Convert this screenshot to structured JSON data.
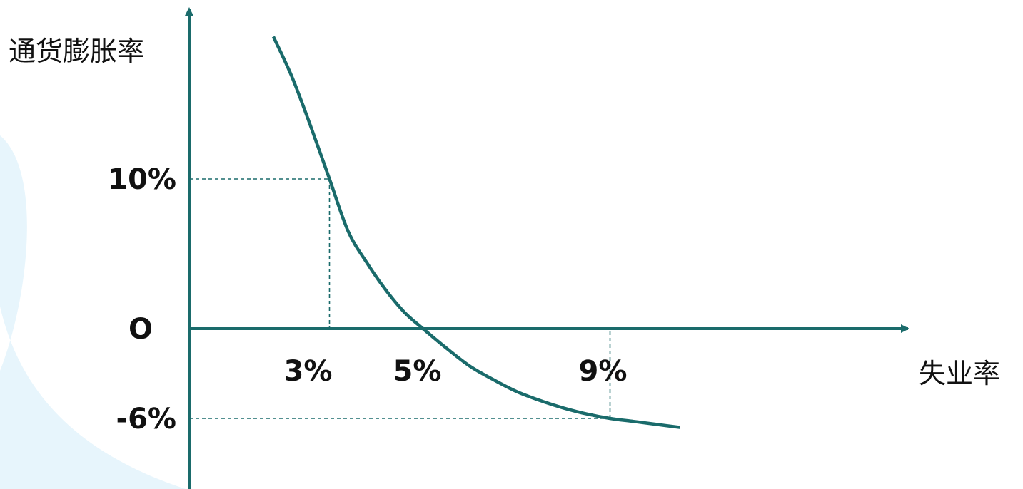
{
  "chart_data": {
    "type": "line",
    "ylabel": "通货膨胀率",
    "xlabel": "失业率",
    "origin_label": "O",
    "colors": {
      "axis": "#1a6b6b",
      "curve": "#1a6b6b",
      "guide": "#1a6b6b",
      "background_arc": "#e3f3fc"
    },
    "x_ticks": [
      {
        "value": 3,
        "label": "3%"
      },
      {
        "value": 5,
        "label": "5%"
      },
      {
        "value": 9,
        "label": "9%"
      }
    ],
    "y_ticks": [
      {
        "value": 10,
        "label": "10%"
      },
      {
        "value": -6,
        "label": "-6%"
      }
    ],
    "xlim": [
      0,
      12
    ],
    "ylim": [
      -10,
      20
    ],
    "series": [
      {
        "x": [
          1.8,
          2.2,
          2.6,
          3.0,
          3.4,
          3.8,
          4.2,
          4.6,
          5.0,
          5.5,
          6.0,
          6.5,
          7.0,
          7.5,
          8.0,
          8.5,
          9.0,
          9.5,
          10.0,
          10.5
        ],
        "values": [
          19.5,
          16.8,
          13.5,
          10.0,
          6.5,
          4.4,
          2.6,
          1.1,
          0.0,
          -1.3,
          -2.5,
          -3.4,
          -4.2,
          -4.8,
          -5.3,
          -5.7,
          -6.0,
          -6.2,
          -6.4,
          -6.6
        ]
      }
    ],
    "guides": [
      {
        "x": 3,
        "y": 10
      },
      {
        "x": 9,
        "y": -6
      }
    ]
  }
}
